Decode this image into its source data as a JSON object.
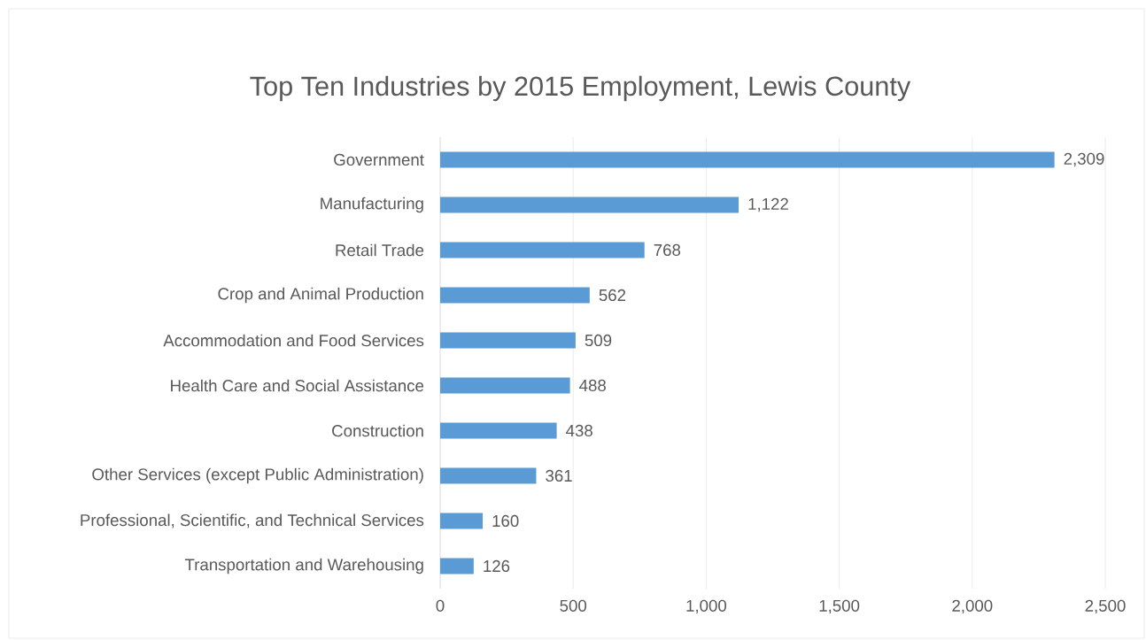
{
  "chart_data": {
    "type": "bar",
    "orientation": "horizontal",
    "title": "Top Ten Industries by 2015 Employment, Lewis County",
    "categories": [
      "Government",
      "Manufacturing",
      "Retail Trade",
      "Crop and Animal Production",
      "Accommodation and Food Services",
      "Health Care and Social Assistance",
      "Construction",
      "Other Services (except Public Administration)",
      "Professional, Scientific, and Technical Services",
      "Transportation and Warehousing"
    ],
    "values": [
      2309,
      1122,
      768,
      562,
      509,
      488,
      438,
      361,
      160,
      126
    ],
    "value_labels": [
      "2,309",
      "1,122",
      "768",
      "562",
      "509",
      "488",
      "438",
      "361",
      "160",
      "126"
    ],
    "color": "#5b9bd5",
    "xlim": [
      0,
      2500
    ],
    "xticks": [
      0,
      500,
      {
        "value": 1000,
        "label": "1,000"
      },
      {
        "value": 1500,
        "label": "1,500"
      },
      {
        "value": 2000,
        "label": "2,000"
      },
      {
        "value": 2500,
        "label": "2,500"
      }
    ],
    "grid": "x"
  }
}
